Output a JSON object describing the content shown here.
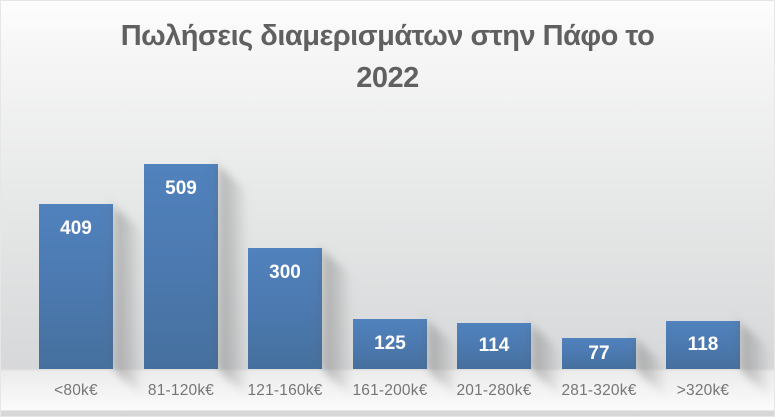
{
  "chart": {
    "title": "Πωλήσεις διαμερισμάτων στην Πάφο το 2022",
    "title_lines": [
      "Πωλήσεις διαμερισμάτων στην Πάφο το",
      "2022"
    ]
  },
  "chart_data": {
    "type": "bar",
    "title": "Πωλήσεις διαμερισμάτων στην Πάφο το 2022",
    "categories": [
      "<80k€",
      "81-120k€",
      "121-160k€",
      "161-200k€",
      "201-280k€",
      "281-320k€",
      ">320k€"
    ],
    "values": [
      409,
      509,
      300,
      125,
      114,
      77,
      118
    ],
    "xlabel": "",
    "ylabel": "",
    "ylim": [
      0,
      540
    ],
    "grid": false,
    "legend": false,
    "data_labels": true,
    "data_label_position": "inside-top",
    "colors": {
      "bar_top": "#5182bd",
      "bar_bottom": "#45709e",
      "value_label": "#ffffff",
      "category_label": "#767676",
      "title": "#606060"
    }
  }
}
